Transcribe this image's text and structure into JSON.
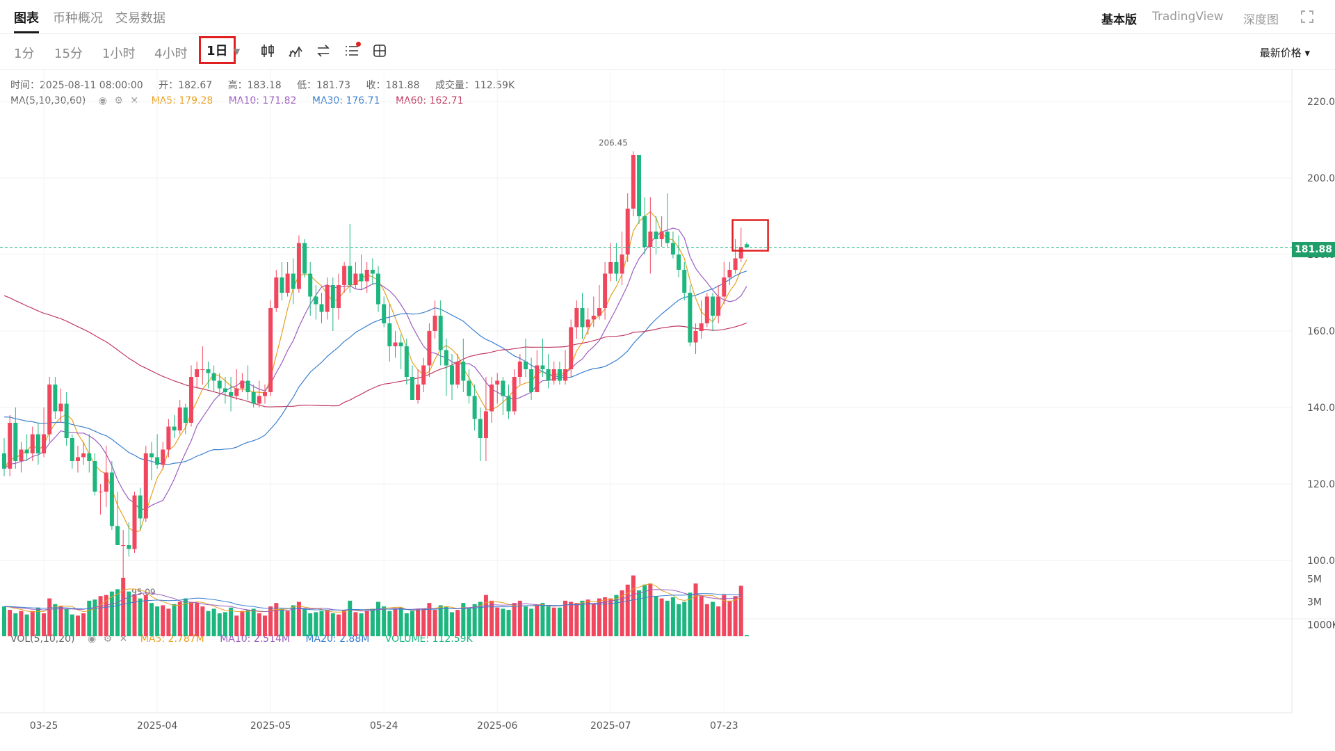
{
  "nav": {
    "tabs": [
      "图表",
      "币种概况",
      "交易数据"
    ],
    "right_tabs": [
      "基本版",
      "TradingView",
      "深度图"
    ]
  },
  "toolbar": {
    "intervals": [
      "1分",
      "15分",
      "1小时",
      "4小时",
      "1日"
    ],
    "selected_interval": "1日",
    "price_type": "最新价格 ▾"
  },
  "ohlc_info": {
    "time": "时间：2025-08-11 08:00:00",
    "open": "开：182.67",
    "high": "高：183.18",
    "low": "低：181.73",
    "close": "收：181.88",
    "volume": "成交量：112.59K"
  },
  "ma_info": {
    "label": "MA(5,10,30,60)",
    "ma5": "MA5: 179.28",
    "ma10": "MA10: 171.82",
    "ma30": "MA30: 176.71",
    "ma60": "MA60: 162.71"
  },
  "vol_info": {
    "label": "VOL(5,10,20)",
    "ma5": "MA5: 2.787M",
    "ma10": "MA10: 2.514M",
    "ma20": "MA20: 2.88M",
    "volume": "VOLUME: 112.59K"
  },
  "current_price": "181.88",
  "colors": {
    "up": "#f0475e",
    "down": "#1db67e",
    "ma5": "#e8a020",
    "ma10": "#9a5cc0",
    "ma30": "#3a7fd0",
    "ma60": "#c03a62"
  },
  "chart_data": {
    "type": "candlestick",
    "y_ticks": [
      "220.00",
      "200.00",
      "180.00",
      "160.00",
      "140.00",
      "120.00",
      "100.00"
    ],
    "ylim": [
      80,
      230
    ],
    "x_ticks": [
      "03-25",
      "2025-04",
      "2025-05",
      "05-24",
      "2025-06",
      "2025-07",
      "07-23"
    ],
    "high_annotation": "206.45",
    "low_annotation": "95.09",
    "vol_ticks": [
      "5M",
      "3M",
      "1000K"
    ],
    "grid": true,
    "candles": [
      [
        128,
        124,
        132,
        122
      ],
      [
        124,
        136,
        138,
        122
      ],
      [
        136,
        126,
        140,
        124
      ],
      [
        126,
        129,
        131,
        123
      ],
      [
        129,
        128,
        133,
        126
      ],
      [
        128,
        133,
        135,
        126
      ],
      [
        133,
        128,
        136,
        125
      ],
      [
        128,
        133,
        140,
        127
      ],
      [
        133,
        146,
        148,
        131
      ],
      [
        146,
        139,
        148,
        137
      ],
      [
        139,
        141,
        145,
        136
      ],
      [
        141,
        132,
        144,
        130
      ],
      [
        132,
        126,
        133,
        124
      ],
      [
        126,
        127,
        130,
        123
      ],
      [
        127,
        128,
        131,
        125
      ],
      [
        128,
        126,
        133,
        123
      ],
      [
        126,
        118,
        128,
        117
      ],
      [
        118,
        118,
        120,
        112
      ],
      [
        118,
        123,
        130,
        114
      ],
      [
        123,
        109,
        126,
        108
      ],
      [
        109,
        104,
        118,
        104
      ],
      [
        104,
        104,
        108,
        95
      ],
      [
        104,
        103,
        110,
        101
      ],
      [
        103,
        117,
        118,
        102
      ],
      [
        117,
        111,
        119,
        108
      ],
      [
        111,
        128,
        130,
        110
      ],
      [
        128,
        127,
        131,
        121
      ],
      [
        127,
        125,
        133,
        124
      ],
      [
        125,
        129,
        131,
        124
      ],
      [
        129,
        135,
        137,
        127
      ],
      [
        135,
        134,
        138,
        132
      ],
      [
        134,
        140,
        142,
        133
      ],
      [
        140,
        136,
        141,
        133
      ],
      [
        136,
        148,
        151,
        135
      ],
      [
        148,
        150,
        152,
        145
      ],
      [
        150,
        150,
        156,
        146
      ],
      [
        150,
        149,
        152,
        145
      ],
      [
        149,
        147,
        151,
        144
      ],
      [
        147,
        145,
        149,
        143
      ],
      [
        145,
        144,
        148,
        141
      ],
      [
        144,
        143,
        148,
        139
      ],
      [
        143,
        145,
        150,
        142
      ],
      [
        145,
        147,
        149,
        144
      ],
      [
        147,
        144,
        151,
        142
      ],
      [
        144,
        141,
        146,
        140
      ],
      [
        141,
        143,
        147,
        140
      ],
      [
        143,
        144,
        146,
        141
      ],
      [
        144,
        166,
        168,
        143
      ],
      [
        166,
        174,
        176,
        165
      ],
      [
        174,
        170,
        178,
        168
      ],
      [
        170,
        175,
        178,
        169
      ],
      [
        175,
        171,
        179,
        167
      ],
      [
        171,
        183,
        185,
        170
      ],
      [
        183,
        175,
        184,
        174
      ],
      [
        175,
        169,
        178,
        164
      ],
      [
        169,
        167,
        172,
        163
      ],
      [
        167,
        165,
        170,
        162
      ],
      [
        165,
        172,
        174,
        163
      ],
      [
        172,
        166,
        174,
        160
      ],
      [
        166,
        172,
        175,
        163
      ],
      [
        172,
        177,
        178,
        170
      ],
      [
        177,
        172,
        188,
        170
      ],
      [
        172,
        175,
        178,
        171
      ],
      [
        175,
        173,
        180,
        171
      ],
      [
        173,
        176,
        178,
        170
      ],
      [
        176,
        175,
        179,
        172
      ],
      [
        175,
        167,
        177,
        165
      ],
      [
        167,
        162,
        169,
        161
      ],
      [
        162,
        156,
        167,
        152
      ],
      [
        156,
        157,
        160,
        153
      ],
      [
        157,
        156,
        159,
        150
      ],
      [
        156,
        148,
        158,
        146
      ],
      [
        148,
        142,
        151,
        142
      ],
      [
        142,
        146,
        150,
        141
      ],
      [
        146,
        151,
        153,
        144
      ],
      [
        151,
        160,
        162,
        148
      ],
      [
        160,
        164,
        168,
        158
      ],
      [
        164,
        155,
        168,
        151
      ],
      [
        155,
        151,
        158,
        143
      ],
      [
        151,
        146,
        154,
        142
      ],
      [
        146,
        152,
        154,
        145
      ],
      [
        152,
        147,
        158,
        144
      ],
      [
        147,
        143,
        150,
        141
      ],
      [
        143,
        137,
        146,
        134
      ],
      [
        137,
        132,
        140,
        126
      ],
      [
        132,
        139,
        148,
        126
      ],
      [
        139,
        146,
        148,
        136
      ],
      [
        146,
        147,
        149,
        141
      ],
      [
        147,
        143,
        148,
        138
      ],
      [
        143,
        139,
        146,
        137
      ],
      [
        139,
        148,
        150,
        138
      ],
      [
        148,
        152,
        154,
        146
      ],
      [
        152,
        150,
        158,
        148
      ],
      [
        150,
        144,
        153,
        142
      ],
      [
        144,
        151,
        155,
        144
      ],
      [
        151,
        150,
        158,
        148
      ],
      [
        150,
        147,
        154,
        145
      ],
      [
        147,
        150,
        152,
        146
      ],
      [
        150,
        147,
        152,
        146
      ],
      [
        147,
        150,
        155,
        146
      ],
      [
        150,
        161,
        163,
        148
      ],
      [
        161,
        166,
        168,
        158
      ],
      [
        166,
        161,
        170,
        158
      ],
      [
        161,
        163,
        166,
        159
      ],
      [
        163,
        164,
        169,
        161
      ],
      [
        164,
        166,
        172,
        163
      ],
      [
        166,
        175,
        178,
        163
      ],
      [
        175,
        178,
        183,
        173
      ],
      [
        178,
        175,
        183,
        173
      ],
      [
        175,
        180,
        186,
        172
      ],
      [
        180,
        192,
        196,
        178
      ],
      [
        192,
        206,
        207,
        190
      ],
      [
        206,
        190,
        206,
        188
      ],
      [
        190,
        182,
        195,
        180
      ],
      [
        182,
        186,
        195,
        175
      ],
      [
        186,
        184,
        190,
        180
      ],
      [
        184,
        186,
        190,
        182
      ],
      [
        186,
        183,
        196,
        182
      ],
      [
        183,
        180,
        186,
        179
      ],
      [
        180,
        176,
        185,
        174
      ],
      [
        176,
        170,
        178,
        168
      ],
      [
        170,
        157,
        172,
        156
      ],
      [
        157,
        160,
        162,
        154
      ],
      [
        160,
        162,
        168,
        158
      ],
      [
        162,
        169,
        170,
        161
      ],
      [
        169,
        164,
        170,
        160
      ],
      [
        164,
        169,
        172,
        162
      ],
      [
        169,
        174,
        178,
        167
      ],
      [
        174,
        176,
        178,
        172
      ],
      [
        176,
        179,
        184,
        175
      ],
      [
        179,
        182,
        187,
        178
      ],
      [
        182.67,
        181.88,
        183.18,
        181.73
      ]
    ],
    "volumes": [
      2.6,
      2.3,
      2.0,
      2.2,
      1.9,
      2.2,
      2.5,
      2.0,
      3.3,
      2.8,
      2.6,
      2.4,
      1.9,
      1.8,
      2.0,
      3.1,
      3.2,
      3.5,
      3.6,
      3.9,
      4.1,
      5.1,
      3.9,
      3.6,
      3.3,
      3.6,
      2.9,
      2.6,
      2.7,
      2.4,
      2.8,
      3.0,
      3.3,
      3.0,
      2.9,
      2.6,
      2.2,
      2.4,
      2.0,
      2.1,
      2.5,
      1.8,
      2.2,
      2.3,
      2.4,
      2.0,
      1.8,
      2.6,
      2.9,
      2.4,
      2.2,
      2.7,
      3.0,
      2.4,
      2.0,
      2.1,
      2.2,
      2.3,
      2.0,
      1.9,
      2.3,
      3.1,
      2.1,
      2.0,
      2.2,
      2.4,
      3.0,
      2.6,
      2.2,
      2.4,
      2.5,
      2.0,
      2.2,
      2.4,
      2.4,
      2.9,
      2.3,
      2.7,
      2.6,
      2.1,
      2.3,
      2.9,
      2.4,
      2.8,
      3.0,
      3.6,
      3.1,
      2.5,
      2.4,
      2.3,
      2.9,
      3.1,
      2.6,
      2.4,
      2.7,
      2.9,
      2.6,
      2.5,
      2.5,
      3.1,
      3.0,
      2.9,
      3.1,
      3.2,
      2.8,
      3.3,
      3.4,
      3.3,
      3.6,
      4.0,
      4.5,
      5.3,
      4.0,
      4.5,
      4.6,
      3.5,
      3.3,
      3.1,
      3.4,
      2.8,
      3.0,
      3.8,
      4.6,
      3.5,
      2.8,
      3.0,
      2.6,
      3.6,
      3.1,
      3.5,
      4.4,
      0.11
    ]
  }
}
